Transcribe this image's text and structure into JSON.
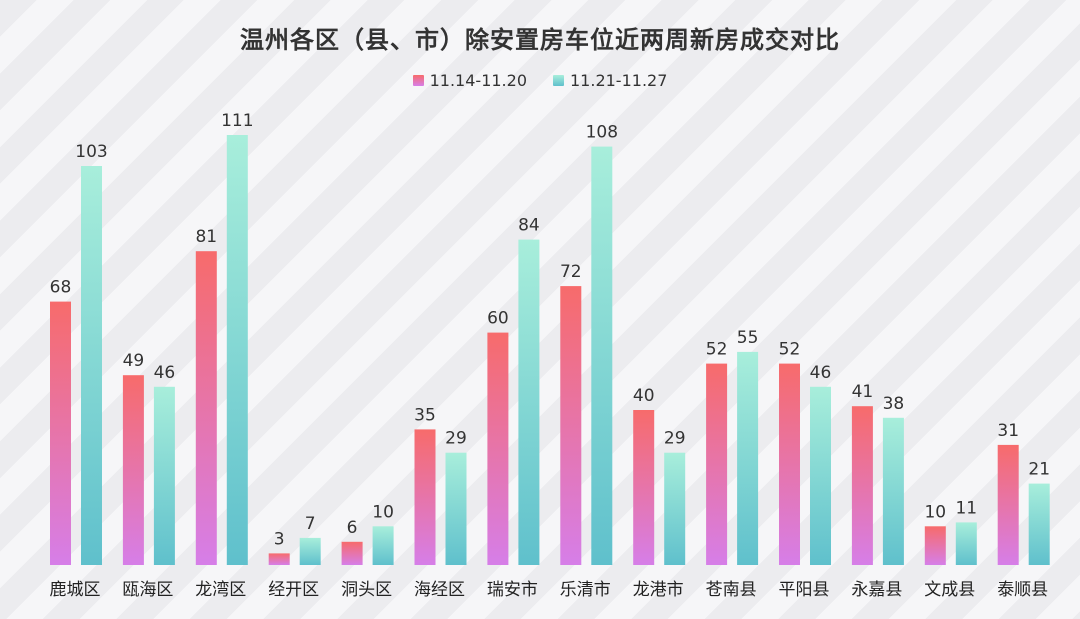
{
  "chart_data": {
    "type": "bar",
    "title": "温州各区（县、市）除安置房车位近两周新房成交对比",
    "categories": [
      "鹿城区",
      "瓯海区",
      "龙湾区",
      "经开区",
      "洞头区",
      "海经区",
      "瑞安市",
      "乐清市",
      "龙港市",
      "苍南县",
      "平阳县",
      "永嘉县",
      "文成县",
      "泰顺县"
    ],
    "series": [
      {
        "name": "11.14-11.20",
        "values": [
          68,
          49,
          81,
          3,
          6,
          35,
          60,
          72,
          40,
          52,
          52,
          41,
          10,
          31
        ],
        "color_top": "#f76b6b",
        "color_bottom": "#d67ee8"
      },
      {
        "name": "11.21-11.27",
        "values": [
          103,
          46,
          111,
          7,
          10,
          29,
          84,
          108,
          29,
          55,
          46,
          38,
          11,
          21
        ],
        "color_top": "#a8eedb",
        "color_bottom": "#5fc0cc"
      }
    ],
    "ylim": [
      0,
      111
    ],
    "legend_position": "top-center",
    "grid": false
  }
}
